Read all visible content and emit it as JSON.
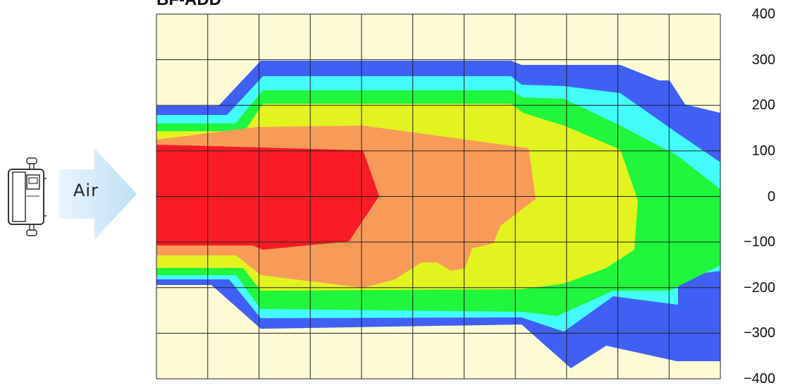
{
  "title": "BF-ADD",
  "air_label": "Air",
  "icons": {
    "device": "air-conditioner-unit-icon",
    "arrow": "airflow-arrow-icon"
  },
  "y_axis": {
    "ticks": [
      "400",
      "300",
      "200",
      "100",
      "0",
      "−100",
      "−200",
      "−300",
      "−400"
    ],
    "range": [
      -400,
      400
    ]
  },
  "colors": {
    "background": "#fdfbd5",
    "level_blue": "#3f5ff5",
    "level_cyan": "#44fbfb",
    "level_green": "#1ff63c",
    "level_yellow": "#e3f320",
    "level_orange": "#f89b59",
    "level_red": "#fb1b26",
    "grid": "#222222",
    "arrow_fill": "#dff0fa"
  }
}
